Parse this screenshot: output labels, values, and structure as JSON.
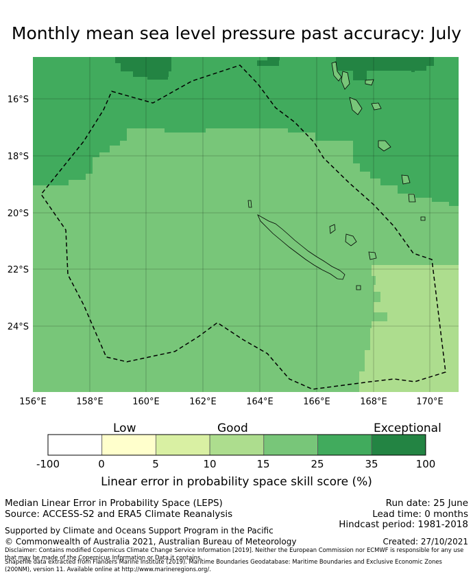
{
  "title": "Monthly mean sea level pressure past accuracy: July",
  "map": {
    "lon_range": [
      156,
      171
    ],
    "lat_range": [
      -26.25,
      -14.5
    ],
    "lon_labels": [
      "156°E",
      "158°E",
      "160°E",
      "162°E",
      "164°E",
      "166°E",
      "168°E",
      "170°E"
    ],
    "lat_labels": [
      "16°S",
      "18°S",
      "20°S",
      "22°S",
      "24°S"
    ],
    "colors": {
      "band_10_15": "#addd8e",
      "band_15_25": "#78c679",
      "band_25_35": "#41ab5d",
      "band_35_100": "#238443",
      "boundary_line": "#000000",
      "gridline": "#000000"
    }
  },
  "colorbar": {
    "category_labels": [
      "Low",
      "Good",
      "Exceptional"
    ],
    "ticks": [
      "-100",
      "0",
      "5",
      "10",
      "15",
      "25",
      "35",
      "100"
    ],
    "colors": [
      "#ffffff",
      "#ffffcc",
      "#d9f0a3",
      "#addd8e",
      "#78c679",
      "#41ab5d",
      "#238443"
    ],
    "label": "Linear error in probability space skill score (%)"
  },
  "info": {
    "method": "Median Linear Error in Probability Space (LEPS)",
    "source": "Source: ACCESS-S2 and ERA5 Climate Reanalysis",
    "run_date": "Run date: 25 June",
    "lead_time": "Lead time: 0 months",
    "hindcast": "Hindcast period: 1981-2018",
    "support": "Supported by Climate and Oceans Support Program in the Pacific",
    "copyright": "© Commonwealth of Australia 2021, Australian Bureau of Meteorology",
    "created": "Created: 27/10/2021",
    "disclaimer_1": "Disclaimer: Contains modified Copernicus Climate Change Service Information [2019]. Neither the European Commission nor ECMWF is responsible for any use that may be made of the Copernicus Information or Data it contains.",
    "disclaimer_2": "Shapefile data extracted from Flanders Marine Institute (2019). Maritime Boundaries Geodatabase: Maritime Boundaries and Exclusive Economic Zones (200NM), version 11. Available online at http://www.marineregions.org/."
  }
}
